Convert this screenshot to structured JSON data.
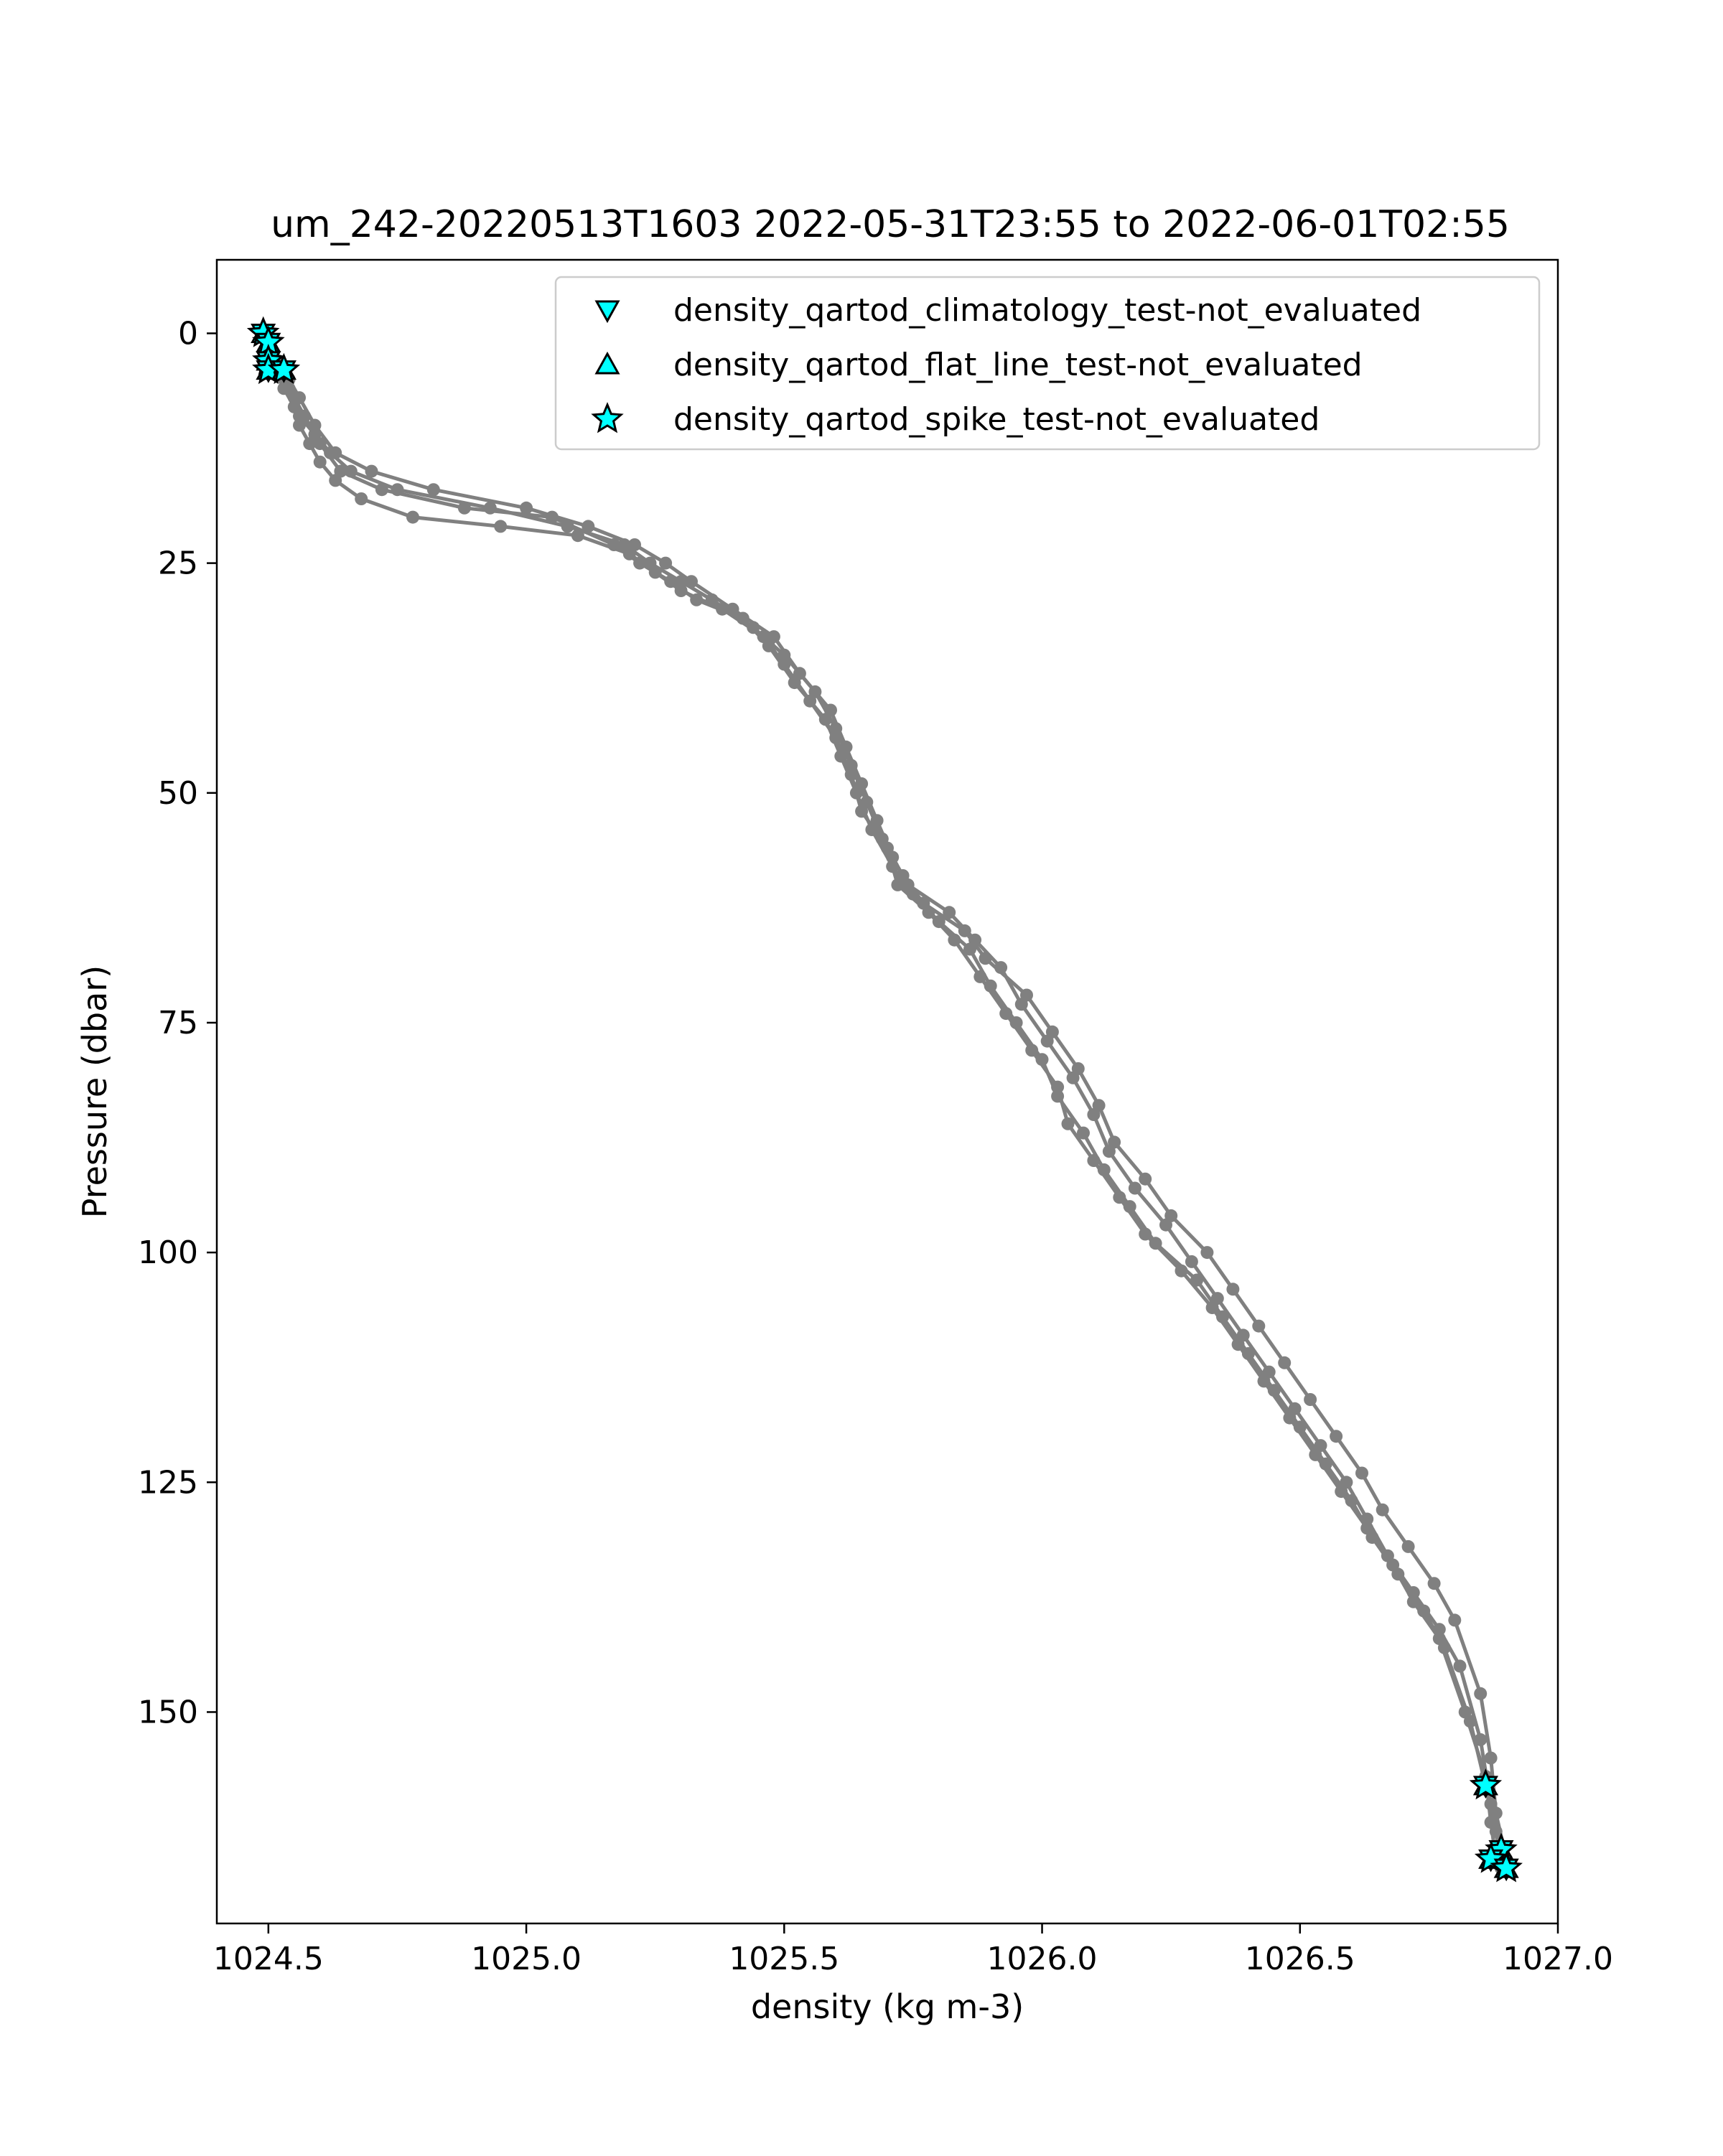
{
  "chart_data": {
    "type": "line",
    "title": "um_242-20220513T1603 2022-05-31T23:55 to 2022-06-01T02:55",
    "xlabel": "density (kg m-3)",
    "ylabel": "Pressure (dbar)",
    "xlim": [
      1024.4,
      1027.0
    ],
    "ylim": [
      173,
      -8
    ],
    "y_inverted": true,
    "grid": false,
    "legend_placement": "top-right",
    "xticks": [
      1024.5,
      1025.0,
      1025.5,
      1026.0,
      1026.5,
      1027.0
    ],
    "xtick_labels": [
      "1024.5",
      "1025.0",
      "1025.5",
      "1026.0",
      "1026.5",
      "1027.0"
    ],
    "yticks": [
      0,
      25,
      50,
      75,
      100,
      125,
      150
    ],
    "ytick_labels": [
      "0",
      "25",
      "50",
      "75",
      "100",
      "125",
      "150"
    ],
    "line_color": "#808080",
    "marker_color": "#00ffff",
    "legend": [
      {
        "label": "density_qartod_climatology_test-not_evaluated",
        "marker": "triangle-down"
      },
      {
        "label": "density_qartod_flat_line_test-not_evaluated",
        "marker": "triangle-up"
      },
      {
        "label": "density_qartod_spike_test-not_evaluated",
        "marker": "star"
      }
    ],
    "profiles": [
      {
        "x": [
          1024.49,
          1024.5,
          1024.52,
          1024.53,
          1024.55,
          1024.56,
          1024.58,
          1024.6,
          1024.63,
          1024.68,
          1024.78,
          1024.95,
          1025.1,
          1025.2,
          1025.25,
          1025.3,
          1025.38,
          1025.46,
          1025.5,
          1025.55,
          1025.6,
          1025.63,
          1025.65,
          1025.7,
          1025.72,
          1025.78,
          1025.83,
          1025.88,
          1025.93,
          1025.98,
          1026.03,
          1026.05,
          1026.1,
          1026.15,
          1026.2,
          1026.27,
          1026.33,
          1026.38,
          1026.43,
          1026.48,
          1026.53,
          1026.58,
          1026.63,
          1026.68,
          1026.72,
          1026.77,
          1026.82,
          1026.86,
          1026.87,
          1026.88
        ],
        "y": [
          0,
          2,
          4,
          6,
          8,
          10,
          12,
          14,
          16,
          18,
          20,
          21,
          22,
          24,
          26,
          28,
          30,
          33,
          36,
          40,
          44,
          48,
          52,
          56,
          60,
          63,
          66,
          70,
          74,
          78,
          82,
          86,
          90,
          94,
          98,
          102,
          106,
          110,
          114,
          118,
          122,
          126,
          130,
          134,
          138,
          142,
          150,
          157,
          162,
          166
        ]
      },
      {
        "x": [
          1024.5,
          1024.51,
          1024.53,
          1024.55,
          1024.57,
          1024.6,
          1024.64,
          1024.72,
          1024.88,
          1025.05,
          1025.17,
          1025.22,
          1025.28,
          1025.33,
          1025.42,
          1025.47,
          1025.52,
          1025.58,
          1025.61,
          1025.64,
          1025.67,
          1025.71,
          1025.75,
          1025.8,
          1025.86,
          1025.9,
          1025.95,
          1026.0,
          1026.03,
          1026.08,
          1026.12,
          1026.17,
          1026.22,
          1026.3,
          1026.35,
          1026.4,
          1026.45,
          1026.5,
          1026.55,
          1026.6,
          1026.64,
          1026.69,
          1026.74,
          1026.78,
          1026.83,
          1026.86,
          1026.88,
          1026.89
        ],
        "y": [
          1,
          3,
          5,
          7,
          9,
          12,
          15,
          17,
          19,
          20,
          23,
          25,
          27,
          29,
          31,
          34,
          38,
          42,
          46,
          50,
          54,
          58,
          61,
          64,
          67,
          71,
          75,
          79,
          83,
          87,
          91,
          95,
          99,
          103,
          107,
          111,
          115,
          119,
          123,
          127,
          131,
          135,
          139,
          143,
          151,
          158,
          163,
          167
        ]
      },
      {
        "x": [
          1024.49,
          1024.5,
          1024.51,
          1024.54,
          1024.56,
          1024.59,
          1024.62,
          1024.66,
          1024.75,
          1024.93,
          1025.08,
          1025.19,
          1025.24,
          1025.3,
          1025.36,
          1025.44,
          1025.5,
          1025.56,
          1025.6,
          1025.63,
          1025.66,
          1025.69,
          1025.73,
          1025.77,
          1025.85,
          1025.89,
          1025.97,
          1026.02,
          1026.07,
          1026.11,
          1026.14,
          1026.2,
          1026.25,
          1026.32,
          1026.37,
          1026.42,
          1026.47,
          1026.52,
          1026.57,
          1026.62,
          1026.66,
          1026.71,
          1026.76,
          1026.8,
          1026.85,
          1026.87,
          1026.88,
          1026.9
        ],
        "y": [
          0,
          2,
          4,
          6,
          9,
          11,
          13,
          15,
          17,
          19,
          21,
          23,
          25,
          27,
          29,
          32,
          35,
          39,
          43,
          47,
          51,
          55,
          59,
          62,
          65,
          68,
          72,
          76,
          80,
          84,
          88,
          92,
          96,
          100,
          104,
          108,
          112,
          116,
          120,
          124,
          128,
          132,
          136,
          140,
          148,
          155,
          161,
          166
        ]
      },
      {
        "x": [
          1024.5,
          1024.52,
          1024.54,
          1024.56,
          1024.59,
          1024.63,
          1024.7,
          1024.82,
          1025.0,
          1025.12,
          1025.21,
          1025.27,
          1025.32,
          1025.4,
          1025.48,
          1025.53,
          1025.59,
          1025.62,
          1025.65,
          1025.68,
          1025.71,
          1025.74,
          1025.82,
          1025.87,
          1025.92,
          1025.96,
          1026.01,
          1026.06,
          1026.1,
          1026.13,
          1026.18,
          1026.24,
          1026.29,
          1026.34,
          1026.39,
          1026.44,
          1026.49,
          1026.54,
          1026.59,
          1026.63,
          1026.67,
          1026.72,
          1026.77,
          1026.81,
          1026.85,
          1026.87,
          1026.89
        ],
        "y": [
          1,
          3,
          5,
          7,
          10,
          13,
          15,
          17,
          19,
          21,
          23,
          25,
          27,
          30,
          33,
          37,
          41,
          45,
          49,
          53,
          57,
          60,
          63,
          66,
          69,
          73,
          77,
          81,
          85,
          89,
          93,
          97,
          101,
          105,
          109,
          113,
          117,
          121,
          125,
          129,
          133,
          137,
          141,
          145,
          153,
          160,
          165
        ]
      }
    ],
    "markers": [
      {
        "x": 1024.49,
        "y": 0,
        "type": "climatology"
      },
      {
        "x": 1024.49,
        "y": 0,
        "type": "flat_line"
      },
      {
        "x": 1024.49,
        "y": 0,
        "type": "spike"
      },
      {
        "x": 1024.5,
        "y": 1,
        "type": "climatology"
      },
      {
        "x": 1024.5,
        "y": 1,
        "type": "flat_line"
      },
      {
        "x": 1024.5,
        "y": 1,
        "type": "spike"
      },
      {
        "x": 1024.5,
        "y": 3,
        "type": "climatology"
      },
      {
        "x": 1024.5,
        "y": 3,
        "type": "flat_line"
      },
      {
        "x": 1024.5,
        "y": 3,
        "type": "spike"
      },
      {
        "x": 1024.5,
        "y": 4,
        "type": "climatology"
      },
      {
        "x": 1024.5,
        "y": 4,
        "type": "flat_line"
      },
      {
        "x": 1024.5,
        "y": 4,
        "type": "spike"
      },
      {
        "x": 1024.53,
        "y": 4,
        "type": "climatology"
      },
      {
        "x": 1024.53,
        "y": 4,
        "type": "flat_line"
      },
      {
        "x": 1024.53,
        "y": 4,
        "type": "spike"
      },
      {
        "x": 1026.86,
        "y": 158,
        "type": "climatology"
      },
      {
        "x": 1026.86,
        "y": 158,
        "type": "flat_line"
      },
      {
        "x": 1026.86,
        "y": 158,
        "type": "spike"
      },
      {
        "x": 1026.89,
        "y": 165,
        "type": "climatology"
      },
      {
        "x": 1026.89,
        "y": 165,
        "type": "flat_line"
      },
      {
        "x": 1026.89,
        "y": 165,
        "type": "spike"
      },
      {
        "x": 1026.87,
        "y": 166,
        "type": "climatology"
      },
      {
        "x": 1026.87,
        "y": 166,
        "type": "flat_line"
      },
      {
        "x": 1026.87,
        "y": 166,
        "type": "spike"
      },
      {
        "x": 1026.9,
        "y": 167,
        "type": "climatology"
      },
      {
        "x": 1026.9,
        "y": 167,
        "type": "flat_line"
      },
      {
        "x": 1026.9,
        "y": 167,
        "type": "spike"
      }
    ]
  }
}
